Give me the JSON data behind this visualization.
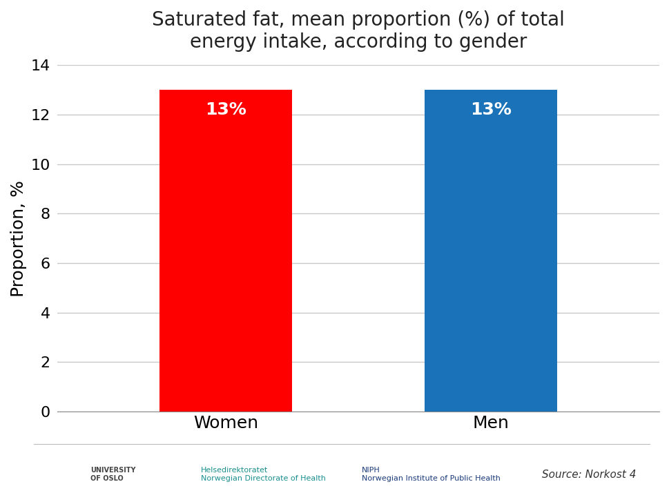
{
  "title": "Saturated fat, mean proportion (%) of total\nenergy intake, according to gender",
  "categories": [
    "Women",
    "Men"
  ],
  "values": [
    13,
    13
  ],
  "bar_colors": [
    "#ff0000",
    "#1a72b8"
  ],
  "bar_labels": [
    "13%",
    "13%"
  ],
  "ylabel": "Proportion, %",
  "ylim": [
    0,
    14
  ],
  "yticks": [
    0,
    2,
    4,
    6,
    8,
    10,
    12,
    14
  ],
  "title_fontsize": 20,
  "label_fontsize": 18,
  "tick_fontsize": 16,
  "bar_label_fontsize": 18,
  "source_text": "Source: Norkost 4",
  "background_color": "#ffffff",
  "grid_color": "#c8c8c8",
  "bar_width": 0.22,
  "x_positions": [
    0.28,
    0.72
  ]
}
